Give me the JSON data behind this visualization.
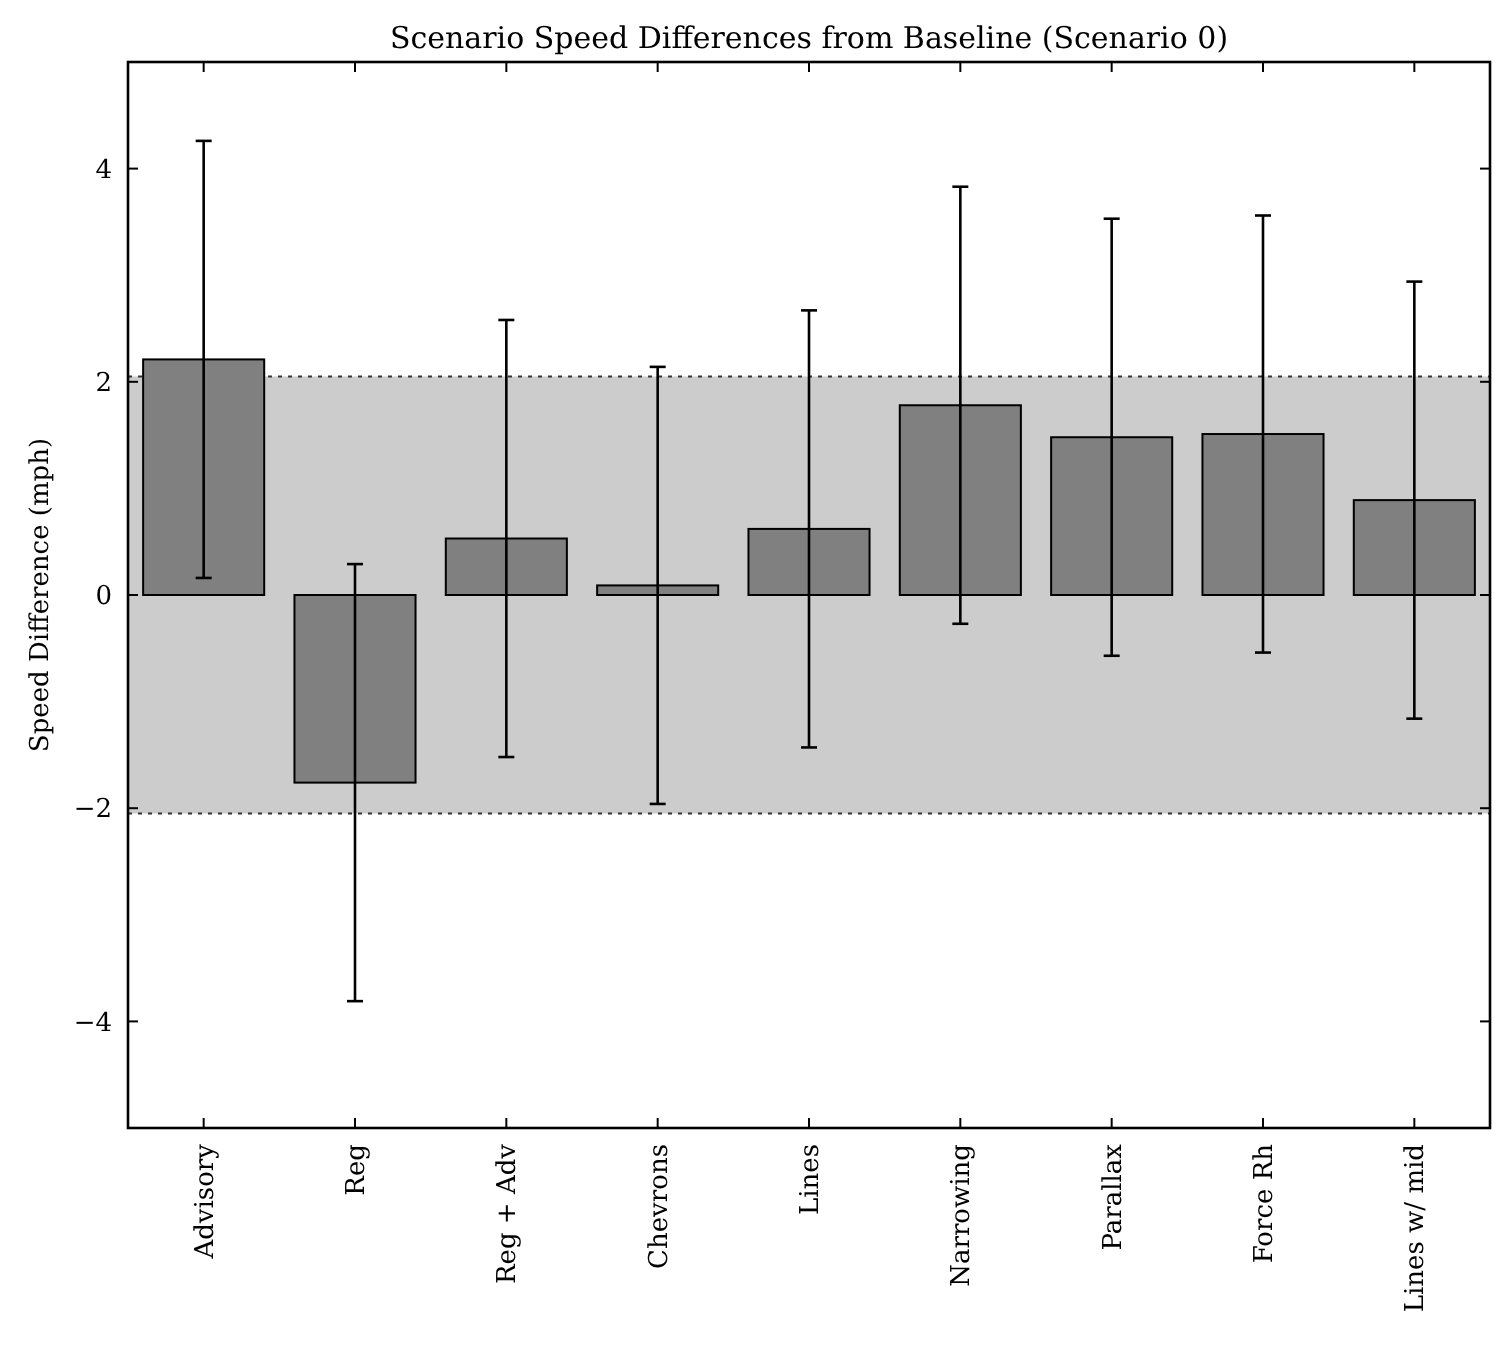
{
  "chart_data": {
    "type": "bar",
    "title": "Scenario Speed Differences from Baseline (Scenario 0)",
    "ylabel": "Speed Difference (mph)",
    "categories": [
      "Advisory",
      "Reg",
      "Reg + Adv",
      "Chevrons",
      "Lines",
      "Narrowing",
      "Parallax",
      "Force Rh",
      "Lines w/ mid"
    ],
    "values": [
      2.21,
      -1.76,
      0.53,
      0.09,
      0.62,
      1.78,
      1.48,
      1.51,
      0.89
    ],
    "errors": [
      2.05,
      2.05,
      2.05,
      2.05,
      2.05,
      2.05,
      2.05,
      2.05,
      2.05
    ],
    "color": "#808080",
    "ylim": [
      -5,
      5
    ],
    "yticks": [
      {
        "value": -4,
        "label": "−4"
      },
      {
        "value": -2,
        "label": "−2"
      },
      0,
      2,
      4
    ],
    "bands": [
      {
        "axis": "y",
        "from": -2.05,
        "to": 2.05,
        "color": "#cccccc"
      }
    ],
    "ref_lines": [
      {
        "axis": "y",
        "value": 2.05,
        "color": "#333333",
        "line_style": "dotted"
      },
      {
        "axis": "y",
        "value": -2.05,
        "color": "#333333",
        "line_style": "dotted"
      }
    ]
  }
}
